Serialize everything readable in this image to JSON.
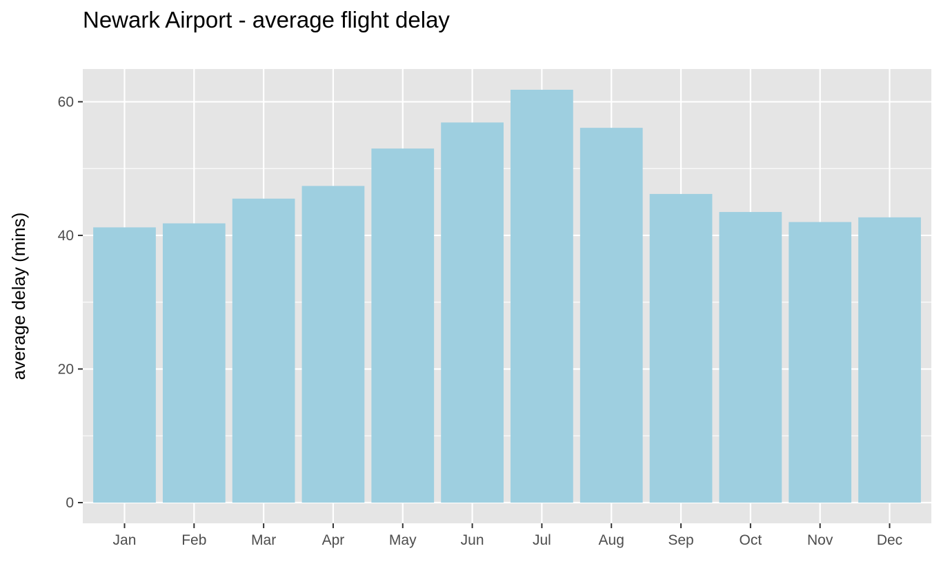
{
  "chart_data": {
    "type": "bar",
    "title": "Newark Airport - average flight delay",
    "xlabel": "",
    "ylabel": "average delay (mins)",
    "categories": [
      "Jan",
      "Feb",
      "Mar",
      "Apr",
      "May",
      "Jun",
      "Jul",
      "Aug",
      "Sep",
      "Oct",
      "Nov",
      "Dec"
    ],
    "values": [
      41.2,
      41.8,
      45.5,
      47.4,
      53.0,
      56.9,
      61.8,
      56.1,
      46.2,
      43.5,
      42.0,
      42.7
    ],
    "ylim": [
      -3.1,
      64.9
    ],
    "yticks": [
      0,
      20,
      40,
      60
    ],
    "ytick_labels": [
      "0",
      "20",
      "40",
      "60"
    ],
    "grid": true,
    "legend": "none",
    "colors": {
      "bar": "#9ecfe0",
      "panel_background": "#e5e5e5",
      "grid": "#ffffff",
      "tick_label": "#4d4d4d",
      "tick_mark": "#333333"
    }
  }
}
